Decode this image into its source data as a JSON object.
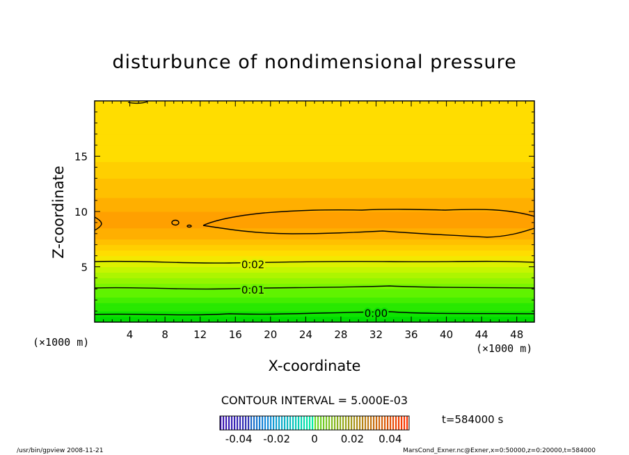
{
  "chart_data": {
    "type": "heatmap",
    "title": "disturbunce of nondimensional pressure",
    "xlabel": "X-coordinate",
    "ylabel": "Z-coordinate",
    "x_unit": "(×1000 m)",
    "y_unit": "(×1000 m)",
    "xlim": [
      0,
      50
    ],
    "ylim": [
      0,
      20
    ],
    "x_ticks": [
      4,
      8,
      12,
      16,
      20,
      24,
      28,
      32,
      36,
      40,
      44,
      48
    ],
    "y_ticks": [
      5,
      10,
      15
    ],
    "z_profile": {
      "z": [
        0,
        1,
        2,
        3,
        4,
        5,
        6,
        7,
        8,
        9,
        10,
        11,
        12,
        13,
        14,
        15,
        16,
        17,
        18,
        19,
        20
      ],
      "value": [
        -0.002,
        0.002,
        0.006,
        0.01,
        0.015,
        0.02,
        0.025,
        0.03,
        0.034,
        0.036,
        0.035,
        0.033,
        0.031,
        0.03,
        0.028,
        0.027,
        0.026,
        0.025,
        0.025,
        0.025,
        0.025
      ]
    },
    "contour_labels": [
      {
        "text": "0.02",
        "x": 18,
        "z": 5.2
      },
      {
        "text": "0.01",
        "x": 18,
        "z": 2.9
      },
      {
        "text": "0.00",
        "x": 32,
        "z": 0.8
      }
    ],
    "contour_interval": "CONTOUR INTERVAL = 5.000E-03",
    "colorbar": {
      "range": [
        -0.05,
        0.05
      ],
      "tick_labels": [
        "-0.04",
        "-0.02",
        "0",
        "0.02",
        "0.04"
      ]
    },
    "time_label": "t=584000 s"
  },
  "footer": {
    "left": "/usr/bin/gpview   2008-11-21",
    "right": "MarsCond_Exner.nc@Exner,x=0:50000,z=0:20000,t=584000"
  },
  "colors": {
    "background": "#ffffff",
    "low": "#00e000",
    "mid": "#ffe000",
    "high": "#ff9a00"
  }
}
